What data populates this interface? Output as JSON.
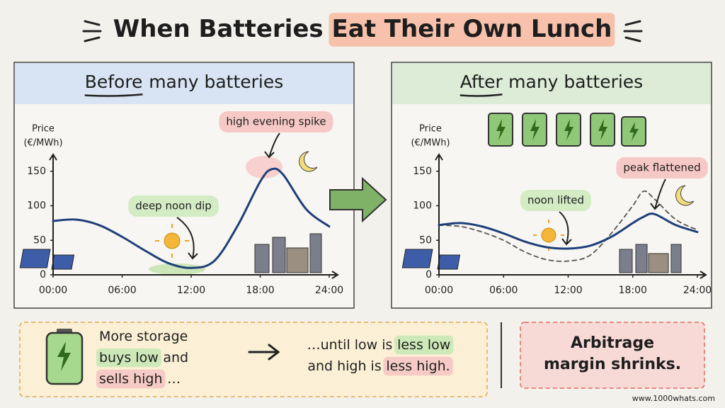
{
  "title_parts": [
    {
      "text": "When Batteries"
    },
    {
      "text": "Eat Their Own Lunch",
      "highlight": "#f7b9a0"
    }
  ],
  "chart_data": [
    {
      "type": "line",
      "title_parts": [
        {
          "text": "Before",
          "underline": true
        },
        {
          "text": "many batteries"
        }
      ],
      "header_color": "#cfe0f3",
      "ylabel": [
        "Price",
        "(€/MWh)"
      ],
      "x": [
        0,
        2,
        4,
        6,
        8,
        10,
        12,
        14,
        16,
        18,
        19,
        20,
        22,
        24
      ],
      "xlim": [
        0,
        24
      ],
      "xticks": [
        {
          "value": 0,
          "label": "00:00"
        },
        {
          "value": 6,
          "label": "06:00"
        },
        {
          "value": 12,
          "label": "12:00"
        },
        {
          "value": 18,
          "label": "18:00"
        },
        {
          "value": 24,
          "label": "24:00"
        }
      ],
      "ylim": [
        0,
        160
      ],
      "yticks": [
        0,
        50,
        100,
        150
      ],
      "series": [
        {
          "color": "#1f3f7a",
          "values": [
            78,
            80,
            72,
            55,
            35,
            17,
            10,
            20,
            70,
            135,
            153,
            145,
            95,
            70
          ]
        }
      ],
      "annotations": [
        {
          "text": "high evening spike",
          "color": "#f6c9c6"
        },
        {
          "text": "deep noon dip",
          "color": "#d4ecc4"
        }
      ]
    },
    {
      "type": "line",
      "title_parts": [
        {
          "text": "After",
          "underline": true
        },
        {
          "text": "many batteries"
        }
      ],
      "header_color": "#d5ead0",
      "ylabel": [
        "Price",
        "(€/MWh)"
      ],
      "x": [
        0,
        2,
        4,
        6,
        8,
        10,
        12,
        14,
        16,
        18,
        19,
        20,
        22,
        24
      ],
      "xlim": [
        0,
        24
      ],
      "xticks": [
        {
          "value": 0,
          "label": "00:00"
        },
        {
          "value": 6,
          "label": "06:00"
        },
        {
          "value": 12,
          "label": "12:00"
        },
        {
          "value": 18,
          "label": "18:00"
        },
        {
          "value": 24,
          "label": "24:00"
        }
      ],
      "ylim": [
        0,
        160
      ],
      "yticks": [
        0,
        50,
        100,
        150
      ],
      "series": [
        {
          "color": "#555555",
          "dash": true,
          "values": [
            72,
            70,
            62,
            50,
            33,
            22,
            20,
            28,
            60,
            100,
            121,
            110,
            80,
            65
          ]
        },
        {
          "color": "#1f3f7a",
          "values": [
            72,
            75,
            70,
            60,
            48,
            40,
            38,
            42,
            55,
            75,
            84,
            88,
            72,
            62
          ]
        }
      ],
      "annotations": [
        {
          "text": "peak flattened",
          "color": "#f6c9c6"
        },
        {
          "text": "noon lifted",
          "color": "#d4ecc4"
        }
      ]
    }
  ],
  "bottom_left": [
    [
      {
        "text": "More storage"
      }
    ],
    [
      {
        "text": "buys low",
        "highlight": "#c6e7b4"
      },
      {
        "text": "and"
      }
    ],
    [
      {
        "text": "sells high",
        "highlight": "#f6c4c2"
      },
      {
        "text": "…"
      }
    ]
  ],
  "bottom_middle": [
    [
      {
        "text": "…until low is"
      },
      {
        "text": "less low",
        "highlight": "#c6e7b4"
      }
    ],
    [
      {
        "text": "and high is"
      },
      {
        "text": "less high.",
        "highlight": "#f6c4c2"
      }
    ]
  ],
  "bottom_right": [
    [
      {
        "text": "Arbitrage"
      }
    ],
    [
      {
        "text": "margin shrinks."
      }
    ]
  ],
  "footer": "www.1000whats.com"
}
